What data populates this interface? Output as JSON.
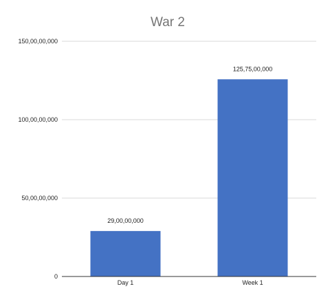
{
  "chart_data": {
    "type": "bar",
    "title": "War 2",
    "xlabel": "",
    "ylabel": "",
    "categories": [
      "Day 1",
      "Week 1"
    ],
    "values": [
      290000000,
      1257500000
    ],
    "data_labels": [
      "29,00,00,000",
      "125,75,00,000"
    ],
    "y_ticks": [
      0,
      500000000,
      1000000000,
      1500000000
    ],
    "y_tick_labels": [
      "0",
      "50,00,00,000",
      "100,00,00,000",
      "150,00,00,000"
    ],
    "ylim": [
      0,
      1500000000
    ],
    "grid": true,
    "legend": "none",
    "colors": {
      "bar": "#4472c4",
      "grid": "#d9d9d9",
      "title": "#757575",
      "text": "#222222",
      "axis": "#333333"
    }
  }
}
